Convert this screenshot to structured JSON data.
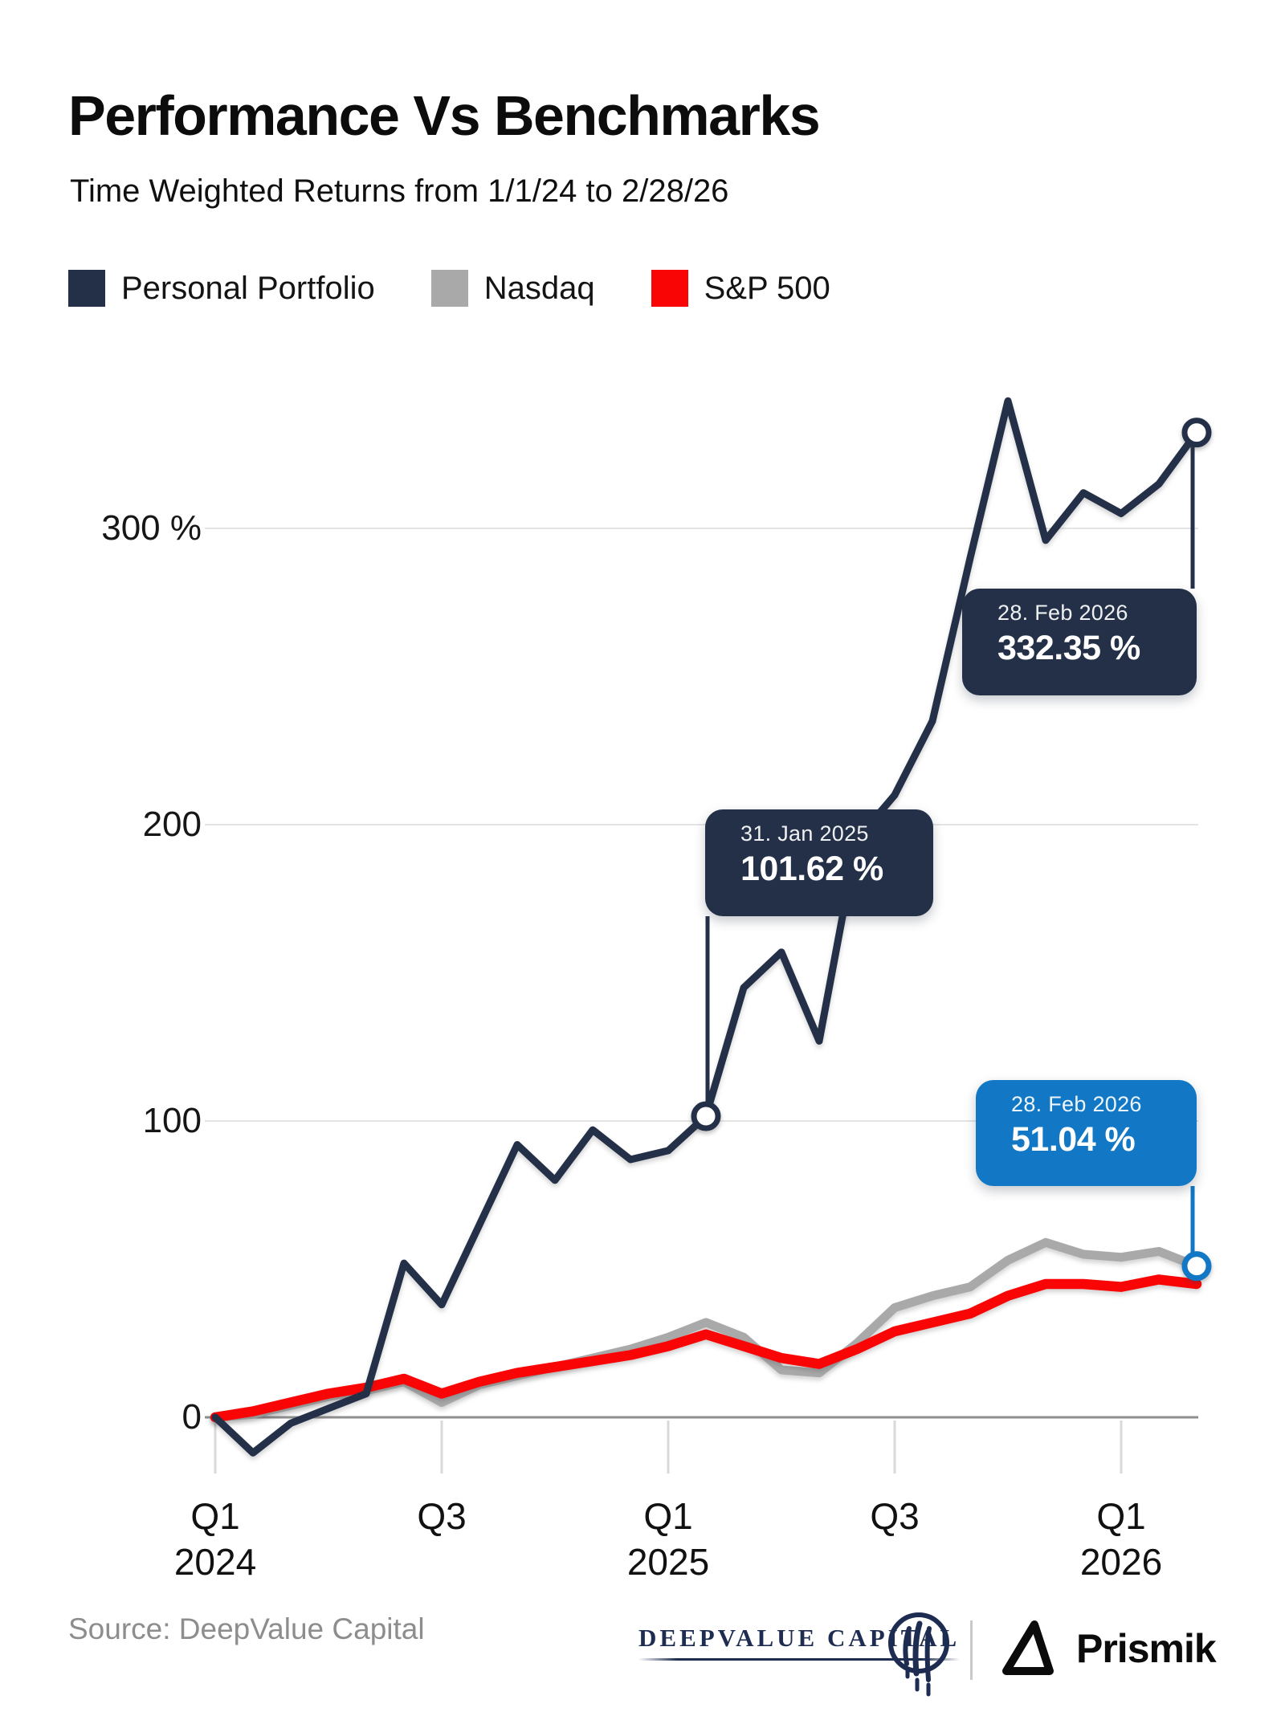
{
  "header": {
    "title": "Performance Vs Benchmarks",
    "subtitle": "Time Weighted Returns from 1/1/24 to 2/28/26"
  },
  "legend": [
    {
      "label": "Personal Portfolio",
      "color": "#233048"
    },
    {
      "label": "Nasdaq",
      "color": "#a9a9a9"
    },
    {
      "label": "S&P 500",
      "color": "#fa0505"
    }
  ],
  "chart_data": {
    "type": "line",
    "title": "Performance Vs Benchmarks",
    "subtitle": "Time Weighted Returns from 1/1/24 to 2/28/26",
    "x_unit": "month-end points from 1/1/24 to 2/28/26",
    "categories": [
      "2024-01-01",
      "2024-01-31",
      "2024-02-29",
      "2024-03-31",
      "2024-04-30",
      "2024-05-31",
      "2024-06-30",
      "2024-07-31",
      "2024-08-31",
      "2024-09-30",
      "2024-10-31",
      "2024-11-30",
      "2024-12-31",
      "2025-01-31",
      "2025-02-28",
      "2025-03-31",
      "2025-04-30",
      "2025-05-31",
      "2025-06-30",
      "2025-07-31",
      "2025-08-31",
      "2025-09-30",
      "2025-10-31",
      "2025-11-30",
      "2025-12-31",
      "2026-01-31",
      "2026-02-28"
    ],
    "series": [
      {
        "name": "Personal Portfolio",
        "color": "#233048",
        "values": [
          0,
          -12,
          -2,
          3,
          8,
          52,
          38,
          65,
          92,
          80,
          97,
          87,
          90,
          101.62,
          145,
          157,
          127,
          195,
          210,
          235,
          290,
          343,
          296,
          312,
          305,
          315,
          332.35
        ]
      },
      {
        "name": "Nasdaq",
        "color": "#a9a9a9",
        "values": [
          0,
          1,
          4,
          7,
          9,
          12,
          5,
          11,
          14,
          17,
          20,
          23,
          27,
          32,
          27,
          16,
          15,
          25,
          37,
          41,
          44,
          53,
          59,
          55,
          54,
          56,
          51.04
        ]
      },
      {
        "name": "S&P 500",
        "color": "#fa0505",
        "values": [
          0,
          2,
          5,
          8,
          10,
          13,
          8,
          12,
          15,
          17,
          19,
          21,
          24,
          28,
          24,
          20,
          18,
          23,
          29,
          32,
          35,
          41,
          45,
          45,
          44,
          46.5,
          45
        ]
      }
    ],
    "ylim": [
      -25,
      360
    ],
    "grid": true,
    "legend_position": "top",
    "y_ticks": [
      {
        "label": "300 %",
        "value": 300
      },
      {
        "label": "200",
        "value": 200
      },
      {
        "label": "100",
        "value": 100
      },
      {
        "label": "0",
        "value": 0
      }
    ],
    "x_ticks": [
      {
        "top": "Q1",
        "bottom": "2024",
        "month_offset": 0
      },
      {
        "top": "Q3",
        "bottom": "",
        "month_offset": 6
      },
      {
        "top": "Q1",
        "bottom": "2025",
        "month_offset": 12
      },
      {
        "top": "Q3",
        "bottom": "",
        "month_offset": 18
      },
      {
        "top": "Q1",
        "bottom": "2026",
        "month_offset": 24
      }
    ]
  },
  "tooltips": [
    {
      "id": "tooltip-101",
      "date": "31. Jan 2025",
      "value": "101.62 %",
      "series": "Personal Portfolio",
      "point_index": 13,
      "bg": "#233048"
    },
    {
      "id": "tooltip-332",
      "date": "28. Feb 2026",
      "value": "332.35 %",
      "series": "Personal Portfolio",
      "point_index": 26,
      "bg": "#233048"
    },
    {
      "id": "tooltip-51",
      "date": "28. Feb 2026",
      "value": "51.04 %",
      "series": "Nasdaq",
      "point_index": 26,
      "bg": "#1278c5"
    }
  ],
  "footer": {
    "source": "Source: DeepValue Capital",
    "brand_left": "DEEPVALUE CAPITAL",
    "brand_right": "Prismik"
  },
  "colors": {
    "portfolio_navy": "#233048",
    "nasdaq_gray": "#a9a9a9",
    "sp500_red": "#fa0505",
    "tooltip_blue": "#1278c5",
    "gridline": "#e4e4e4",
    "axis_line": "#8f8f8f",
    "tick_stub": "#d9d9d9"
  }
}
